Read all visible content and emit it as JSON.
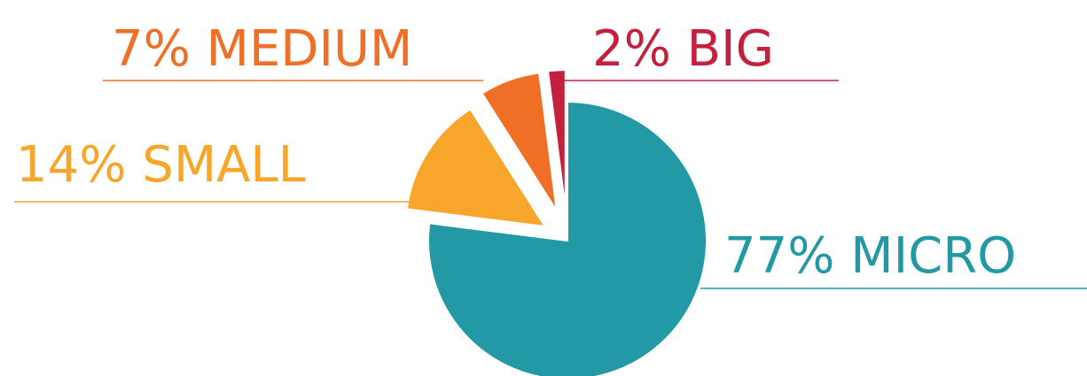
{
  "chart_data": {
    "type": "pie",
    "title": "",
    "categories": [
      "MICRO",
      "SMALL",
      "MEDIUM",
      "BIG"
    ],
    "values": [
      77,
      14,
      7,
      2
    ],
    "labels": [
      "77% MICRO",
      "14% SMALL",
      "7% MEDIUM",
      "2% BIG"
    ],
    "colors": [
      "#2399a6",
      "#f8a62b",
      "#ef6f26",
      "#c41f3c"
    ],
    "exploded": [
      false,
      true,
      true,
      true
    ],
    "legend": "none"
  }
}
